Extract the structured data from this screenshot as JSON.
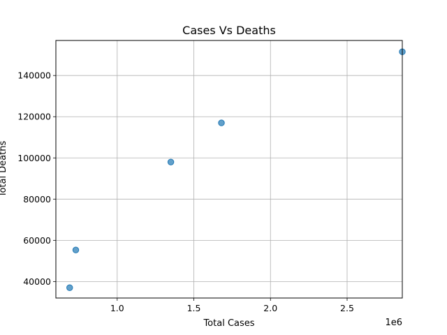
{
  "chart_data": {
    "type": "scatter",
    "title": "Cases Vs Deaths",
    "xlabel": "Total Cases",
    "ylabel": "Total Deaths",
    "x_offset_label": "1e6",
    "xlim": [
      0.6,
      2.86
    ],
    "ylim": [
      32000,
      157000
    ],
    "x_ticks": [
      1.0,
      1.5,
      2.0,
      2.5
    ],
    "x_tick_labels": [
      "1.0",
      "1.5",
      "2.0",
      "2.5"
    ],
    "y_ticks": [
      40000,
      60000,
      80000,
      100000,
      120000,
      140000
    ],
    "y_tick_labels": [
      "40000",
      "60000",
      "80000",
      "100000",
      "120000",
      "140000"
    ],
    "grid": true,
    "marker_color": "#1f77b4",
    "points": [
      {
        "x": 0.69,
        "y": 37000
      },
      {
        "x": 0.73,
        "y": 55300
      },
      {
        "x": 1.35,
        "y": 98000
      },
      {
        "x": 1.68,
        "y": 117000
      },
      {
        "x": 2.86,
        "y": 151500
      }
    ]
  }
}
